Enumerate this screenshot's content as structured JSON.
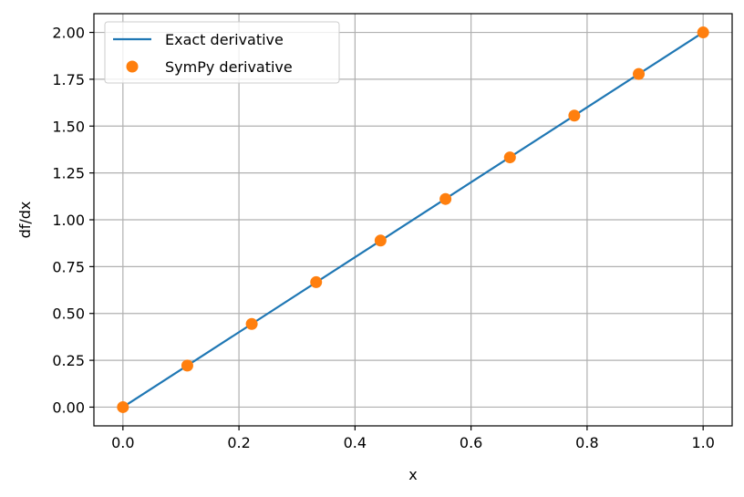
{
  "colors": {
    "line": "#1f77b4",
    "markers": "#ff7f0e",
    "grid": "#b0b0b0",
    "axes": "#000000",
    "background": "#ffffff"
  },
  "chart_data": {
    "type": "line",
    "xlabel": "x",
    "ylabel": "df/dx",
    "xlim": [
      -0.05,
      1.05
    ],
    "ylim": [
      -0.1,
      2.1
    ],
    "grid": true,
    "legend_position": "upper-left",
    "xticks": [
      0.0,
      0.2,
      0.4,
      0.6,
      0.8,
      1.0
    ],
    "xtick_labels": [
      "0.0",
      "0.2",
      "0.4",
      "0.6",
      "0.8",
      "1.0"
    ],
    "yticks": [
      0.0,
      0.25,
      0.5,
      0.75,
      1.0,
      1.25,
      1.5,
      1.75,
      2.0
    ],
    "ytick_labels": [
      "0.00",
      "0.25",
      "0.50",
      "0.75",
      "1.00",
      "1.25",
      "1.50",
      "1.75",
      "2.00"
    ],
    "series": [
      {
        "name": "Exact derivative",
        "style": "line",
        "x": [
          0.0,
          1.0
        ],
        "y": [
          0.0,
          2.0
        ]
      },
      {
        "name": "SymPy derivative",
        "style": "markers",
        "x": [
          0.0,
          0.111,
          0.222,
          0.333,
          0.444,
          0.556,
          0.667,
          0.778,
          0.889,
          1.0
        ],
        "y": [
          0.0,
          0.222,
          0.444,
          0.667,
          0.889,
          1.111,
          1.333,
          1.556,
          1.778,
          2.0
        ]
      }
    ]
  }
}
